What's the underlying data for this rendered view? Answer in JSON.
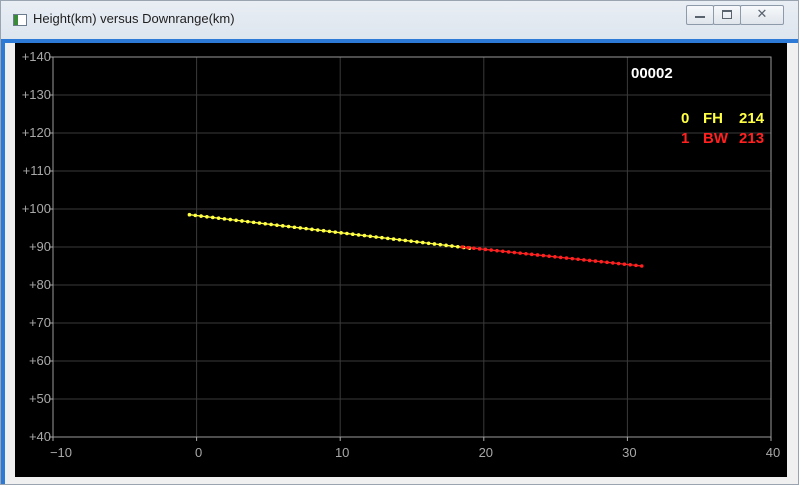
{
  "window": {
    "title": "Height(km) versus Downrange(km)",
    "buttons": [
      "minimize",
      "maximize",
      "close"
    ],
    "close_glyph": "✕"
  },
  "chart_data": {
    "type": "scatter",
    "title": "Height(km) versus Downrange(km)",
    "xlabel": "Downrange(km)",
    "ylabel": "Height(km)",
    "xlim": [
      -10,
      40
    ],
    "ylim": [
      40,
      140
    ],
    "x_ticks": [
      -10,
      0,
      10,
      20,
      30,
      40
    ],
    "x_tick_labels": [
      "−10",
      "0",
      "10",
      "20",
      "30",
      "40"
    ],
    "y_ticks": [
      40,
      50,
      60,
      70,
      80,
      90,
      100,
      110,
      120,
      130,
      140
    ],
    "y_tick_labels": [
      "+40",
      "+50",
      "+60",
      "+70",
      "+80",
      "+90",
      "+100",
      "+110",
      "+120",
      "+130",
      "+140"
    ],
    "grid": true,
    "legend_position": "top-right",
    "legend_header": "00002",
    "series": [
      {
        "index": "0",
        "name": "FH",
        "count": "214",
        "color": "#ffff44",
        "x_start": -0.5,
        "x_end": 19.0,
        "y_start": 98.5,
        "y_end": 89.7
      },
      {
        "index": "1",
        "name": "BW",
        "count": "213",
        "color": "#ff2020",
        "x_start": 18.5,
        "x_end": 31.0,
        "y_start": 90.0,
        "y_end": 85.0
      }
    ],
    "background": "#000000",
    "grid_color": "#3a3a3a",
    "tick_color": "#a8a8a8"
  }
}
